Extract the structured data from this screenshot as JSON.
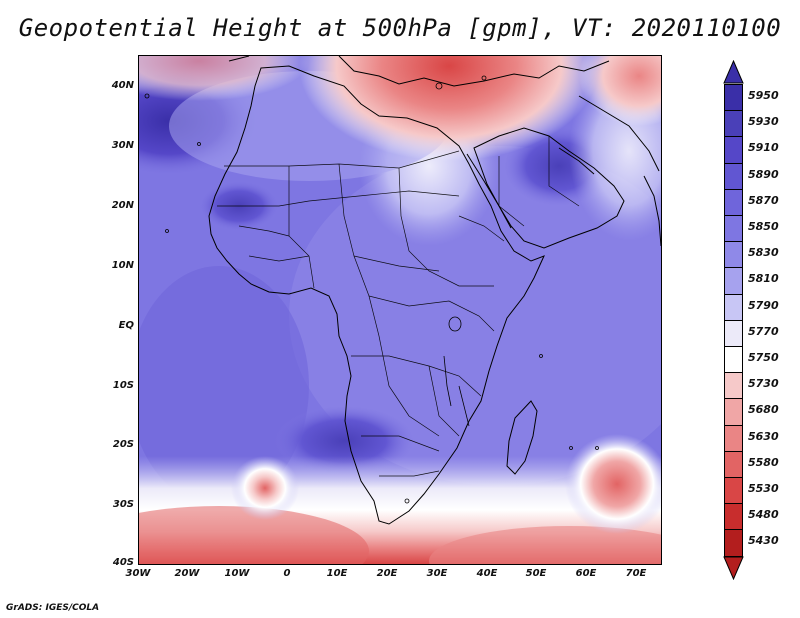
{
  "title": "Geopotential Height at 500hPa [gpm], VT: 2020110100",
  "credit": "GrADS: IGES/COLA",
  "y_axis_labels": [
    "40N",
    "30N",
    "20N",
    "10N",
    "EQ",
    "10S",
    "20S",
    "30S",
    "40S"
  ],
  "x_axis_labels": [
    "30W",
    "20W",
    "10W",
    "0",
    "10E",
    "20E",
    "30E",
    "40E",
    "50E",
    "60E",
    "70E"
  ],
  "colorbar": {
    "levels": [
      "5950",
      "5930",
      "5910",
      "5890",
      "5870",
      "5850",
      "5830",
      "5810",
      "5790",
      "5770",
      "5750",
      "5730",
      "5680",
      "5630",
      "5580",
      "5530",
      "5480",
      "5430"
    ],
    "colors": [
      "#3a2fa8",
      "#4a40b8",
      "#5547c8",
      "#6156d2",
      "#6f65db",
      "#7e76e2",
      "#8f89e8",
      "#a6a2ee",
      "#c8c6f5",
      "#eceaf9",
      "#ffffff",
      "#f6c9c9",
      "#f0a6a6",
      "#ea8585",
      "#e26464",
      "#d94646",
      "#c82d2d",
      "#b31e1e"
    ]
  },
  "colors": {
    "land_border": "#000000",
    "background_field": "#7e76e2"
  }
}
